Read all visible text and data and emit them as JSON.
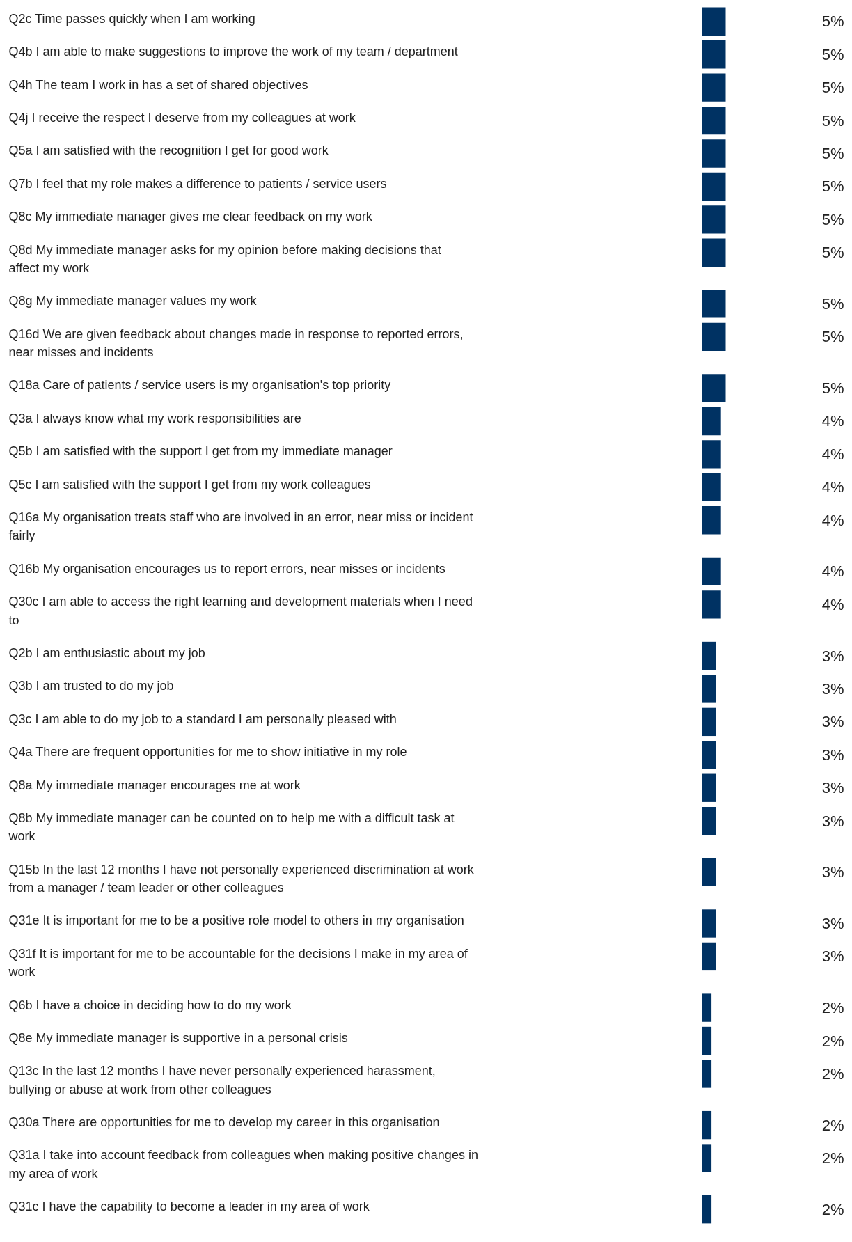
{
  "chart_data": {
    "type": "bar",
    "orientation": "horizontal",
    "color": "#003263",
    "categories": [
      "Q2c   Time passes quickly when I am working",
      "Q4b   I am able to make suggestions to improve the work of my team / department",
      "Q4h   The team I work in has a set of shared objectives",
      "Q4j   I receive the respect I deserve from my colleagues at work",
      "Q5a   I am satisfied with the recognition I get for good work",
      "Q7b   I feel that my role makes a difference to patients / service users",
      "Q8c   My immediate manager gives me clear feedback on my work",
      "Q8d   My immediate manager asks for my opinion before making decisions that\naffect my work",
      "Q8g   My immediate manager values my work",
      "Q16d   We are given feedback about changes made in response to reported errors,\nnear misses and incidents",
      "Q18a   Care of patients / service users is my organisation's top priority",
      "Q3a   I always know what my work responsibilities are",
      "Q5b   I am satisfied with the support I get from my immediate manager",
      "Q5c   I am satisfied with the support I get from my work colleagues",
      "Q16a   My organisation treats staff who are involved in an error, near miss or incident\nfairly",
      "Q16b   My organisation encourages us to report errors, near misses or incidents",
      "Q30c   I am able to access the right learning and development materials when I need\nto",
      "Q2b   I am enthusiastic about my job",
      "Q3b   I am trusted to do my job",
      "Q3c   I am able to do my job to a standard I am personally pleased with",
      "Q4a   There are frequent opportunities for me to show initiative in my role",
      "Q8a   My immediate manager encourages me at work",
      "Q8b   My immediate manager can be counted on to help me with a difficult task at\nwork",
      "Q15b   In the last 12 months I have not personally experienced discrimination at work\nfrom a manager / team leader or other colleagues",
      "Q31e   It is important for me to be a positive role model to others in my organisation",
      "Q31f   It is important for me to be accountable for the decisions I make in my area of\nwork",
      "Q6b   I have a choice in deciding how to do my work",
      "Q8e   My immediate manager is supportive in a personal crisis",
      "Q13c   In the last 12 months I have never personally experienced harassment,\nbullying or abuse at work from other colleagues",
      "Q30a   There are opportunities for me to develop my career in this organisation",
      "Q31a   I take into account feedback from colleagues when making positive changes in\nmy area of work",
      "Q31c   I have the capability to become a leader in my area of work"
    ],
    "values": [
      5,
      5,
      5,
      5,
      5,
      5,
      5,
      5,
      5,
      5,
      5,
      4,
      4,
      4,
      4,
      4,
      4,
      3,
      3,
      3,
      3,
      3,
      3,
      3,
      3,
      3,
      2,
      2,
      2,
      2,
      2,
      2
    ],
    "value_labels": [
      "5%",
      "5%",
      "5%",
      "5%",
      "5%",
      "5%",
      "5%",
      "5%",
      "5%",
      "5%",
      "5%",
      "4%",
      "4%",
      "4%",
      "4%",
      "4%",
      "4%",
      "3%",
      "3%",
      "3%",
      "3%",
      "3%",
      "3%",
      "3%",
      "3%",
      "3%",
      "2%",
      "2%",
      "2%",
      "2%",
      "2%",
      "2%"
    ]
  }
}
